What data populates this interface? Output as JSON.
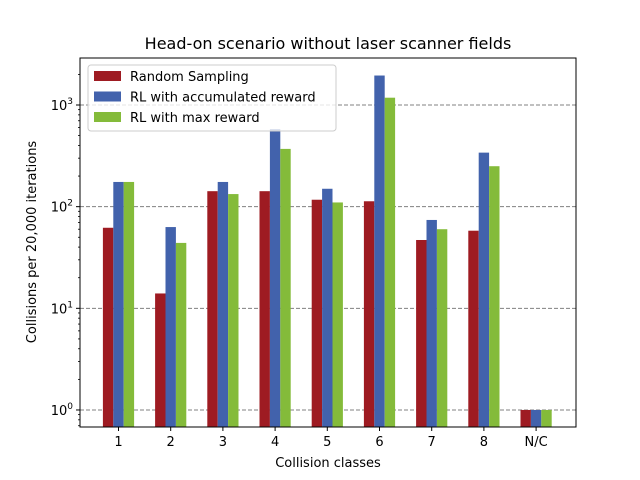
{
  "chart_data": {
    "type": "bar",
    "title": "Head-on scenario without laser scanner fields",
    "xlabel": "Collision classes",
    "ylabel": "Collisions per 20,000 iterations",
    "yscale": "log",
    "ylim": [
      0.68,
      2900
    ],
    "yticks": [
      {
        "value": 1,
        "base": "10",
        "exp": "0"
      },
      {
        "value": 10,
        "base": "10",
        "exp": "1"
      },
      {
        "value": 100,
        "base": "10",
        "exp": "2"
      },
      {
        "value": 1000,
        "base": "10",
        "exp": "3"
      }
    ],
    "grid": "y-major-dashed",
    "legend_position": "upper-left",
    "categories": [
      "1",
      "2",
      "3",
      "4",
      "5",
      "6",
      "7",
      "8",
      "N/C"
    ],
    "series": [
      {
        "name": "Random Sampling",
        "color": "#9e1b22",
        "values": [
          62,
          14,
          142,
          142,
          117,
          113,
          47,
          58,
          1
        ]
      },
      {
        "name": "RL with accumulated reward",
        "color": "#4262ac",
        "values": [
          175,
          63,
          175,
          580,
          150,
          1950,
          74,
          340,
          1
        ]
      },
      {
        "name": "RL with max reward",
        "color": "#84bb3a",
        "values": [
          175,
          44,
          133,
          370,
          110,
          1180,
          60,
          250,
          1
        ]
      }
    ]
  }
}
